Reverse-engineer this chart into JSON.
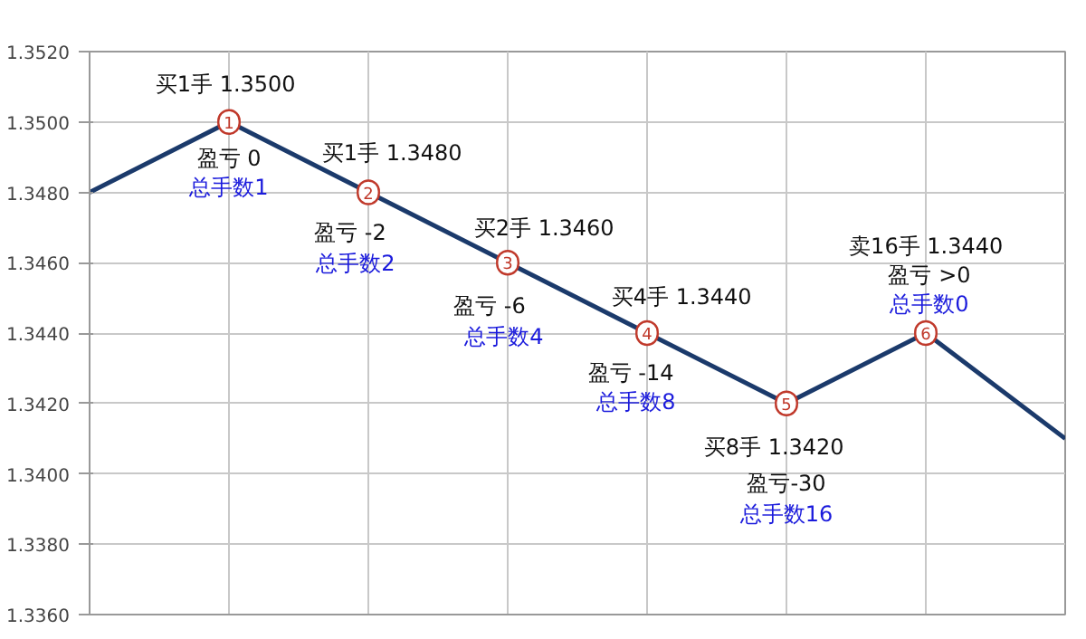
{
  "chart_data": {
    "type": "line",
    "categories": [
      null,
      null,
      null,
      null,
      null,
      null,
      null,
      null
    ],
    "series": [
      {
        "color": "#1b3a6b",
        "values": [
          1.348,
          1.35,
          1.348,
          1.346,
          1.344,
          1.342,
          1.344,
          1.341
        ]
      }
    ],
    "ylim": [
      1.336,
      1.352
    ],
    "yticks": [
      {
        "value": 1.336,
        "label": "1.3360"
      },
      {
        "value": 1.338,
        "label": "1.3380"
      },
      {
        "value": 1.34,
        "label": "1.3400"
      },
      {
        "value": 1.342,
        "label": "1.3420"
      },
      {
        "value": 1.344,
        "label": "1.3440"
      },
      {
        "value": 1.346,
        "label": "1.3460"
      },
      {
        "value": 1.348,
        "label": "1.3480"
      },
      {
        "value": 1.35,
        "label": "1.3500"
      },
      {
        "value": 1.352,
        "label": "1.3520"
      }
    ],
    "grid": true,
    "annotations": [
      "1",
      "买1手  1.3500",
      "盈亏 0",
      "总手数1",
      "2",
      "买1手  1.3480",
      "盈亏 -2",
      "总手数2",
      "3",
      "买2手  1.3460",
      "盈亏 -6",
      "总手数4",
      "4",
      "买4手  1.3440",
      "盈亏 -14",
      "总手数8",
      "5",
      "买8手  1.3420",
      "盈亏-30",
      "总手数16",
      "6",
      "卖16手  1.3440",
      "盈亏 >0",
      "总手数0"
    ]
  }
}
